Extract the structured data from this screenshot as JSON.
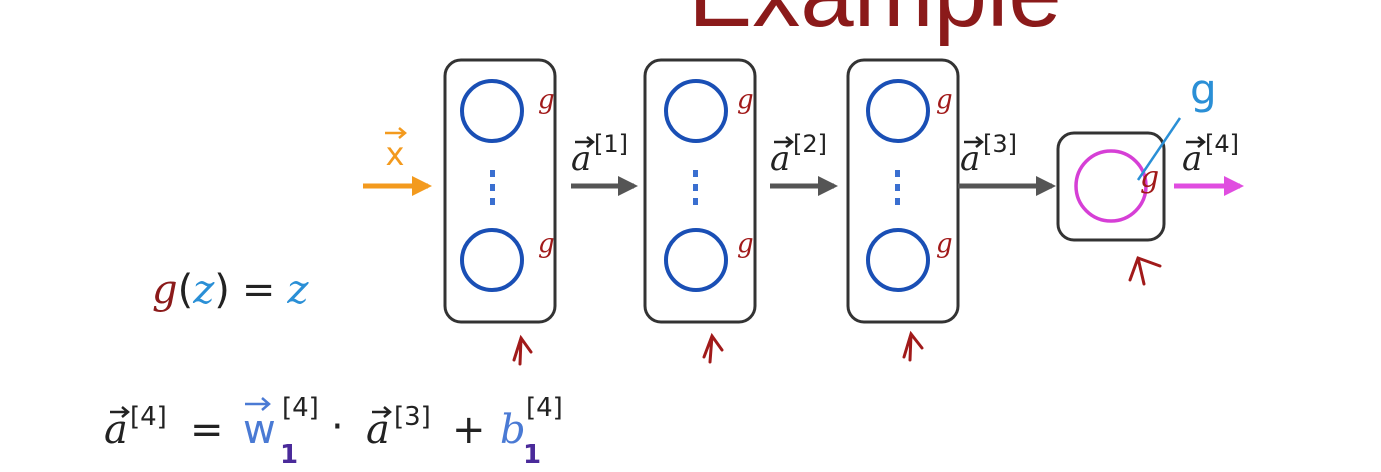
{
  "title_fragment": "Example",
  "input": {
    "symbol": "x"
  },
  "layers": [
    {
      "label": "a",
      "superscript": "[1]",
      "activation": "g"
    },
    {
      "label": "a",
      "superscript": "[2]",
      "activation": "g"
    },
    {
      "label": "a",
      "superscript": "[3]",
      "activation": "g"
    },
    {
      "label": "a",
      "superscript": "[4]",
      "activation": "g"
    }
  ],
  "annotation": {
    "g_note": "g"
  },
  "activation_equation": {
    "lhs_fn": "g",
    "lhs_arg": "z",
    "equals": "=",
    "rhs": "z"
  },
  "output_equation": {
    "lhs": "a",
    "lhs_sup": "[4]",
    "equals": "=",
    "w": "w",
    "w_sub": "1",
    "w_sup": "[4]",
    "dot": "·",
    "a": "a",
    "a_sup": "[3]",
    "plus": "+",
    "b": "b",
    "b_sub": "1",
    "b_sup": "[4]"
  },
  "colors": {
    "title": "#8b1a1a",
    "neuron": "#1a4fb5",
    "output_neuron": "#d63fd6",
    "input_arrow": "#f39a1e",
    "output_arrow": "#e04de0",
    "hidden_arrow": "#555555",
    "box_border": "#333333",
    "handwriting": "#a11a1a",
    "note_blue": "#2a8fd6",
    "eq_z": "#2a8fd6",
    "eq_w": "#4a7ad4",
    "eq_sub": "#4a2a9a"
  }
}
